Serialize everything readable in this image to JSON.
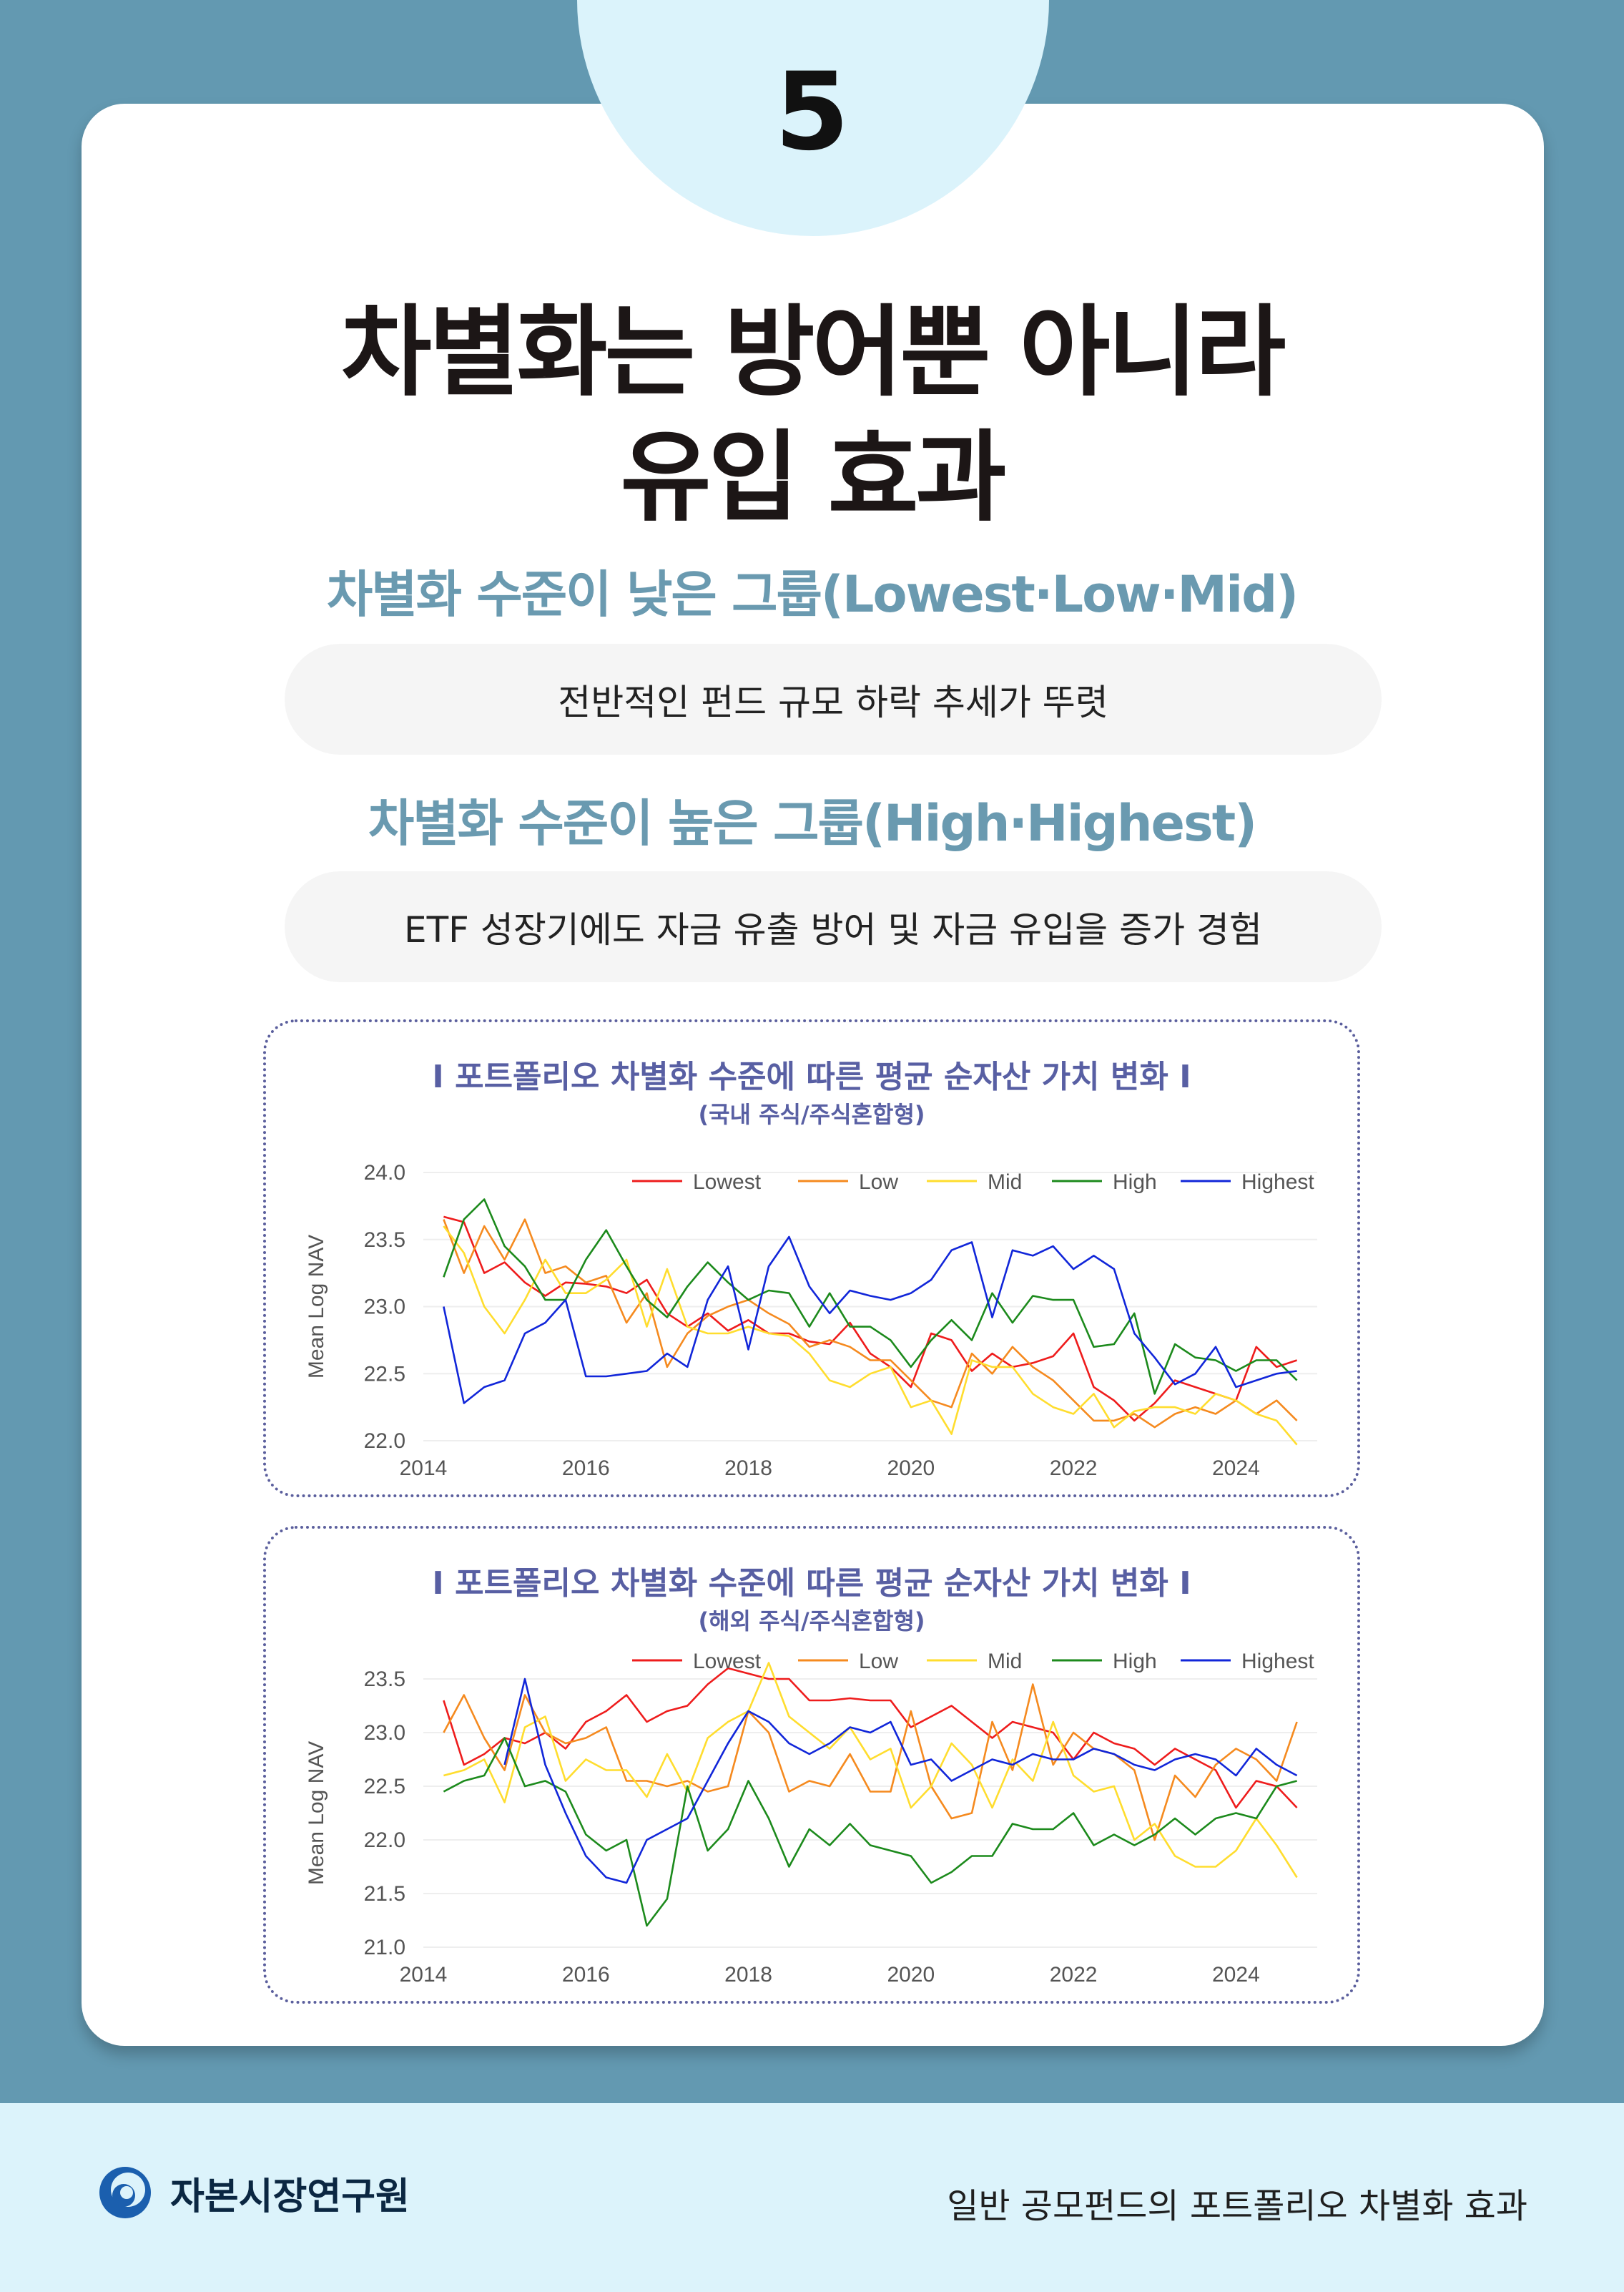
{
  "header": {
    "number": "5"
  },
  "title": {
    "line1": "차별화는 방어뿐 아니라",
    "line2": "유입 효과"
  },
  "section1": {
    "heading": "차별화 수준이 낮은 그룹(Lowest·Low·Mid)",
    "text": "전반적인 펀드 규모 하락 추세가 뚜렷"
  },
  "section2": {
    "heading": "차별화 수준이 높은 그룹(High·Highest)",
    "text": "ETF 성장기에도 자금 유출 방어 및 자금 유입을 증가 경험"
  },
  "footer": {
    "org": "자본시장연구원",
    "right": "일반 공모펀드의 포트폴리오 차별화 효과"
  },
  "colors": {
    "background": "#6399b1",
    "accent": "#6a9ab0",
    "chart_title": "#585fa3"
  },
  "chart_data": [
    {
      "type": "line",
      "title": "I  포트폴리오 차별화 수준에 따른 평균 순자산 가치 변화  I",
      "subtitle": "(국내 주식/주식혼합형)",
      "ylabel": "Mean Log NAV",
      "xlim": [
        2014,
        2025
      ],
      "ylim": [
        22.0,
        24.0
      ],
      "xticks": [
        "2014",
        "2016",
        "2018",
        "2020",
        "2022",
        "2024"
      ],
      "yticks": [
        "22.0",
        "22.5",
        "23.0",
        "23.5",
        "24.0"
      ],
      "legend": "top-right",
      "x": [
        2014.25,
        2014.5,
        2014.75,
        2015.0,
        2015.25,
        2015.5,
        2015.75,
        2016.0,
        2016.25,
        2016.5,
        2016.75,
        2017.0,
        2017.25,
        2017.5,
        2017.75,
        2018.0,
        2018.25,
        2018.5,
        2018.75,
        2019.0,
        2019.25,
        2019.5,
        2019.75,
        2020.0,
        2020.25,
        2020.5,
        2020.75,
        2021.0,
        2021.25,
        2021.5,
        2021.75,
        2022.0,
        2022.25,
        2022.5,
        2022.75,
        2023.0,
        2023.25,
        2023.5,
        2023.75,
        2024.0,
        2024.25,
        2024.5,
        2024.75
      ],
      "series": [
        {
          "name": "Lowest",
          "color": "#ee1c1c",
          "values": [
            23.67,
            23.63,
            23.25,
            23.33,
            23.18,
            23.08,
            23.18,
            23.17,
            23.15,
            23.1,
            23.2,
            22.95,
            22.85,
            22.95,
            22.82,
            22.9,
            22.8,
            22.8,
            22.74,
            22.72,
            22.88,
            22.65,
            22.55,
            22.4,
            22.8,
            22.75,
            22.52,
            22.65,
            22.55,
            22.58,
            22.63,
            22.8,
            22.4,
            22.3,
            22.15,
            22.28,
            22.45,
            22.4,
            22.35,
            22.3,
            22.7,
            22.55,
            22.6
          ]
        },
        {
          "name": "Low",
          "color": "#f58a1f",
          "values": [
            23.65,
            23.25,
            23.6,
            23.35,
            23.65,
            23.25,
            23.3,
            23.18,
            23.23,
            22.88,
            23.1,
            22.55,
            22.8,
            22.93,
            23.0,
            23.05,
            22.95,
            22.87,
            22.7,
            22.75,
            22.7,
            22.6,
            22.6,
            22.45,
            22.3,
            22.25,
            22.65,
            22.5,
            22.7,
            22.55,
            22.45,
            22.3,
            22.15,
            22.15,
            22.2,
            22.1,
            22.2,
            22.25,
            22.2,
            22.3,
            22.2,
            22.3,
            22.15
          ]
        },
        {
          "name": "Mid",
          "color": "#ffdd2e",
          "values": [
            23.6,
            23.4,
            23.0,
            22.8,
            23.05,
            23.35,
            23.1,
            23.1,
            23.2,
            23.35,
            22.85,
            23.28,
            22.85,
            22.8,
            22.8,
            22.85,
            22.8,
            22.78,
            22.65,
            22.45,
            22.4,
            22.5,
            22.55,
            22.25,
            22.3,
            22.05,
            22.6,
            22.55,
            22.55,
            22.35,
            22.25,
            22.2,
            22.35,
            22.1,
            22.22,
            22.25,
            22.25,
            22.2,
            22.35,
            22.3,
            22.2,
            22.15,
            21.97
          ]
        },
        {
          "name": "High",
          "color": "#1c8a1c",
          "values": [
            23.22,
            23.65,
            23.8,
            23.45,
            23.3,
            23.05,
            23.05,
            23.35,
            23.57,
            23.3,
            23.05,
            22.92,
            23.15,
            23.33,
            23.18,
            23.05,
            23.12,
            23.1,
            22.85,
            23.1,
            22.85,
            22.85,
            22.75,
            22.55,
            22.75,
            22.9,
            22.75,
            23.1,
            22.88,
            23.08,
            23.05,
            23.05,
            22.7,
            22.72,
            22.95,
            22.35,
            22.72,
            22.62,
            22.6,
            22.52,
            22.6,
            22.6,
            22.45
          ]
        },
        {
          "name": "Highest",
          "color": "#1126d9",
          "values": [
            23.0,
            22.28,
            22.4,
            22.45,
            22.8,
            22.88,
            23.05,
            22.48,
            22.48,
            22.5,
            22.52,
            22.65,
            22.55,
            23.05,
            23.3,
            22.68,
            23.3,
            23.52,
            23.15,
            22.95,
            23.12,
            23.08,
            23.05,
            23.1,
            23.2,
            23.42,
            23.48,
            22.92,
            23.42,
            23.38,
            23.45,
            23.28,
            23.38,
            23.28,
            22.8,
            22.62,
            22.42,
            22.5,
            22.7,
            22.4,
            22.45,
            22.5,
            22.52
          ]
        }
      ]
    },
    {
      "type": "line",
      "title": "I  포트폴리오 차별화 수준에 따른 평균 순자산 가치 변화  I",
      "subtitle": "(해외 주식/주식혼합형)",
      "ylabel": "Mean Log NAV",
      "xlim": [
        2014,
        2025
      ],
      "ylim": [
        21.0,
        23.5
      ],
      "xticks": [
        "2014",
        "2016",
        "2018",
        "2020",
        "2022",
        "2024"
      ],
      "yticks": [
        "21.0",
        "21.5",
        "22.0",
        "22.5",
        "23.0",
        "23.5"
      ],
      "legend": "top-right",
      "x": [
        2014.25,
        2014.5,
        2014.75,
        2015.0,
        2015.25,
        2015.5,
        2015.75,
        2016.0,
        2016.25,
        2016.5,
        2016.75,
        2017.0,
        2017.25,
        2017.5,
        2017.75,
        2018.0,
        2018.25,
        2018.5,
        2018.75,
        2019.0,
        2019.25,
        2019.5,
        2019.75,
        2020.0,
        2020.25,
        2020.5,
        2020.75,
        2021.0,
        2021.25,
        2021.5,
        2021.75,
        2022.0,
        2022.25,
        2022.5,
        2022.75,
        2023.0,
        2023.25,
        2023.5,
        2023.75,
        2024.0,
        2024.25,
        2024.5,
        2024.75
      ],
      "series": [
        {
          "name": "Lowest",
          "color": "#ee1c1c",
          "values": [
            23.3,
            22.7,
            22.8,
            22.95,
            22.9,
            23.0,
            22.85,
            23.1,
            23.2,
            23.35,
            23.1,
            23.2,
            23.25,
            23.45,
            23.6,
            23.55,
            23.5,
            23.5,
            23.3,
            23.3,
            23.32,
            23.3,
            23.3,
            23.05,
            23.15,
            23.25,
            23.1,
            22.95,
            23.1,
            23.05,
            23.0,
            22.75,
            23.0,
            22.9,
            22.85,
            22.7,
            22.85,
            22.75,
            22.65,
            22.3,
            22.55,
            22.5,
            22.3
          ]
        },
        {
          "name": "Low",
          "color": "#f58a1f",
          "values": [
            23.0,
            23.35,
            22.95,
            22.65,
            23.35,
            23.0,
            22.9,
            22.95,
            23.05,
            22.55,
            22.55,
            22.5,
            22.55,
            22.45,
            22.5,
            23.2,
            23.0,
            22.45,
            22.55,
            22.5,
            22.8,
            22.45,
            22.45,
            23.2,
            22.5,
            22.2,
            22.25,
            23.1,
            22.65,
            23.45,
            22.7,
            23.0,
            22.85,
            22.8,
            22.65,
            22.0,
            22.6,
            22.4,
            22.7,
            22.85,
            22.75,
            22.55,
            23.1
          ]
        },
        {
          "name": "Mid",
          "color": "#ffdd2e",
          "values": [
            22.6,
            22.65,
            22.75,
            22.35,
            23.05,
            23.15,
            22.55,
            22.75,
            22.65,
            22.65,
            22.4,
            22.8,
            22.45,
            22.95,
            23.1,
            23.2,
            23.65,
            23.15,
            23.0,
            22.85,
            23.05,
            22.75,
            22.85,
            22.3,
            22.5,
            22.9,
            22.7,
            22.3,
            22.75,
            22.55,
            23.1,
            22.6,
            22.45,
            22.5,
            22.0,
            22.15,
            21.85,
            21.75,
            21.75,
            21.9,
            22.2,
            21.95,
            21.65
          ]
        },
        {
          "name": "High",
          "color": "#1c8a1c",
          "values": [
            22.45,
            22.55,
            22.6,
            22.95,
            22.5,
            22.55,
            22.45,
            22.05,
            21.9,
            22.0,
            21.2,
            21.45,
            22.5,
            21.9,
            22.1,
            22.55,
            22.2,
            21.75,
            22.1,
            21.95,
            22.15,
            21.95,
            21.9,
            21.85,
            21.6,
            21.7,
            21.85,
            21.85,
            22.15,
            22.1,
            22.1,
            22.25,
            21.95,
            22.05,
            21.95,
            22.05,
            22.2,
            22.05,
            22.2,
            22.25,
            22.2,
            22.5,
            22.55
          ]
        },
        {
          "name": "Highest",
          "color": "#1126d9",
          "values": [
            null,
            null,
            null,
            22.7,
            23.5,
            22.7,
            22.25,
            21.85,
            21.65,
            21.6,
            22.0,
            22.1,
            22.2,
            22.55,
            22.9,
            23.2,
            23.1,
            22.9,
            22.8,
            22.9,
            23.05,
            23.0,
            23.1,
            22.7,
            22.75,
            22.55,
            22.65,
            22.75,
            22.7,
            22.8,
            22.75,
            22.75,
            22.85,
            22.8,
            22.7,
            22.65,
            22.75,
            22.8,
            22.75,
            22.6,
            22.85,
            22.7,
            22.6
          ]
        }
      ]
    }
  ]
}
